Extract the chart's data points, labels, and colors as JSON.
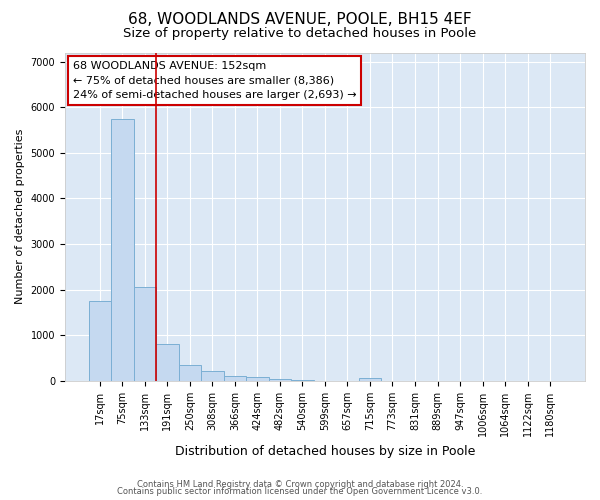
{
  "title1": "68, WOODLANDS AVENUE, POOLE, BH15 4EF",
  "title2": "Size of property relative to detached houses in Poole",
  "xlabel": "Distribution of detached houses by size in Poole",
  "ylabel": "Number of detached properties",
  "bar_labels": [
    "17sqm",
    "75sqm",
    "133sqm",
    "191sqm",
    "250sqm",
    "308sqm",
    "366sqm",
    "424sqm",
    "482sqm",
    "540sqm",
    "599sqm",
    "657sqm",
    "715sqm",
    "773sqm",
    "831sqm",
    "889sqm",
    "947sqm",
    "1006sqm",
    "1064sqm",
    "1122sqm",
    "1180sqm"
  ],
  "bar_values": [
    1750,
    5750,
    2050,
    820,
    360,
    220,
    110,
    80,
    40,
    20,
    5,
    5,
    60,
    0,
    0,
    0,
    0,
    0,
    0,
    0,
    0
  ],
  "bar_color": "#c5d9f0",
  "bar_edge_color": "#7bafd4",
  "vline_x": 2.5,
  "vline_color": "#cc0000",
  "annotation_text": "68 WOODLANDS AVENUE: 152sqm\n← 75% of detached houses are smaller (8,386)\n24% of semi-detached houses are larger (2,693) →",
  "annotation_box_color": "#ffffff",
  "annotation_box_edge": "#cc0000",
  "ylim": [
    0,
    7200
  ],
  "yticks": [
    0,
    1000,
    2000,
    3000,
    4000,
    5000,
    6000,
    7000
  ],
  "footer1": "Contains HM Land Registry data © Crown copyright and database right 2024.",
  "footer2": "Contains public sector information licensed under the Open Government Licence v3.0.",
  "fig_background": "#ffffff",
  "plot_background": "#dce8f5",
  "title1_fontsize": 11,
  "title2_fontsize": 9.5,
  "annotation_fontsize": 8,
  "ylabel_fontsize": 8,
  "xlabel_fontsize": 9,
  "tick_fontsize": 7,
  "footer_fontsize": 6
}
